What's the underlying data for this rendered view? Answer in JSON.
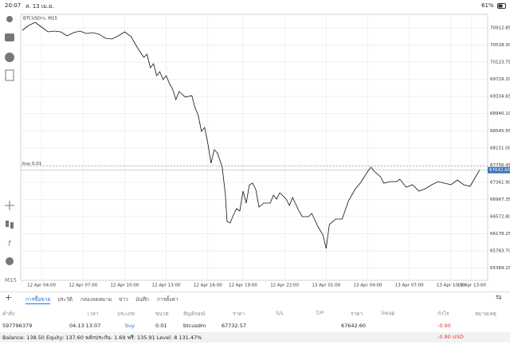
{
  "status_bar": {
    "time": "20:07",
    "date": "ส. 13 เม.ย.",
    "battery": "61%"
  },
  "toolbar": {
    "timeframe": "M15"
  },
  "chart": {
    "type": "line",
    "symbol_label": "BTCUSDm, M15",
    "color": "#111111",
    "grid": true,
    "x": [
      0,
      2,
      4,
      6,
      8,
      10,
      12,
      14,
      16,
      18,
      20,
      22,
      24,
      26,
      28,
      30,
      32,
      34,
      36,
      38,
      39,
      40,
      41,
      42,
      43,
      44,
      45,
      46,
      47,
      48,
      49,
      51,
      53,
      54,
      55,
      56,
      57,
      58,
      59,
      60,
      61,
      62.5,
      63.5,
      64,
      65,
      66,
      67,
      68,
      69,
      70,
      71,
      72,
      73,
      74,
      75.5,
      77.5,
      78.5,
      79.5,
      80.5,
      82.5,
      83.5,
      84.5,
      86.5,
      87.5,
      89.5,
      90.5,
      92.5,
      94,
      95,
      96,
      98,
      100,
      102,
      104,
      106,
      108,
      109,
      110,
      112,
      113,
      115,
      117,
      118,
      120,
      122,
      124,
      126,
      128,
      130,
      132,
      134,
      136,
      138,
      140,
      142,
      143
    ],
    "values": [
      70858,
      70968,
      71041,
      70931,
      70822,
      70840,
      70822,
      70730,
      70803,
      70840,
      70785,
      70803,
      70767,
      70675,
      70657,
      70730,
      70822,
      70712,
      70455,
      70236,
      70309,
      69998,
      70089,
      69815,
      69906,
      69723,
      69815,
      69631,
      69503,
      69265,
      69448,
      69320,
      69357,
      69082,
      68899,
      68533,
      68624,
      68258,
      67800,
      68112,
      68038,
      67709,
      67068,
      66464,
      66427,
      66610,
      66757,
      66702,
      67160,
      66885,
      67306,
      67343,
      67196,
      66793,
      66885,
      66885,
      67068,
      66976,
      67123,
      66976,
      66830,
      67013,
      66702,
      66574,
      66574,
      66647,
      66336,
      66153,
      65841,
      66391,
      66519,
      66519,
      66940,
      67196,
      67379,
      67617,
      67709,
      67617,
      67489,
      67343,
      67379,
      67379,
      67434,
      67251,
      67306,
      67160,
      67215,
      67306,
      67379,
      67343,
      67306,
      67416,
      67306,
      67269,
      67526,
      67642.6
    ],
    "xlim": [
      -0.5,
      145.5
    ],
    "xticks": [
      {
        "value": 6,
        "label": "12 Apr 04:00"
      },
      {
        "value": 19,
        "label": "12 Apr 07:00"
      },
      {
        "value": 32,
        "label": "12 Apr 10:00"
      },
      {
        "value": 45,
        "label": "12 Apr 13:00"
      },
      {
        "value": 58,
        "label": "12 Apr 16:00"
      },
      {
        "value": 69,
        "label": "12 Apr 19:00"
      },
      {
        "value": 82,
        "label": "12 Apr 22:00"
      },
      {
        "value": 95,
        "label": "13 Apr 01:00"
      },
      {
        "value": 108,
        "label": "13 Apr 04:00"
      },
      {
        "value": 121,
        "label": "13 Apr 07:00"
      },
      {
        "value": 134,
        "label": "13 Apr 10:00"
      },
      {
        "value": 140.5,
        "label": "13 Apr 13:00"
      }
    ],
    "ylim": [
      65109,
      71224
    ],
    "yticks": [
      70912.85,
      {
        "value": 70518.3,
        "label": "70518.30"
      },
      70123.75,
      {
        "value": 69729.2,
        "label": "69729.20"
      },
      69334.65,
      {
        "value": 68940.1,
        "label": "68940.10"
      },
      68545.55,
      {
        "value": 68151,
        "label": "68151.00"
      },
      67756.45,
      {
        "value": 67361.9,
        "label": "67361.90"
      },
      66967.35,
      {
        "value": 66572.8,
        "label": "66572.80"
      },
      66178.25,
      {
        "value": 65783.7,
        "label": "65783.70"
      },
      65389.15
    ],
    "current_price": {
      "value": 67642.6,
      "label": "67642.60"
    },
    "order_line": {
      "value": 67732.57,
      "label": "buy 0.01"
    }
  },
  "tabs": [
    "การซื้อขาย",
    "ประวัติ",
    "กล่องจดหมาย",
    "ข่าว",
    "บันทึก",
    "การตั้งค่า"
  ],
  "table": {
    "headers": [
      "คำสั่ง",
      "เวลา",
      "ประเภท",
      "ขนาด",
      "สัญลักษณ์",
      "ราคา",
      "S/L",
      "T/P",
      "ราคา",
      "Swap",
      "กำไร",
      "หมายเหตุ"
    ],
    "row": {
      "order": "597796379",
      "time": "04.13 13:07",
      "type": "buy",
      "volume": "0.01",
      "symbol": "btcusdm",
      "open_price": "67732.57",
      "current_price": "67642.60",
      "profit": "-0.90"
    }
  },
  "summary": {
    "text": "Balance: 138.50 Equity: 137.60 พลักประกัน: 1.69 ฟรี: 135.91 Level: 8 131.47%",
    "total": "-0.90 USD"
  }
}
